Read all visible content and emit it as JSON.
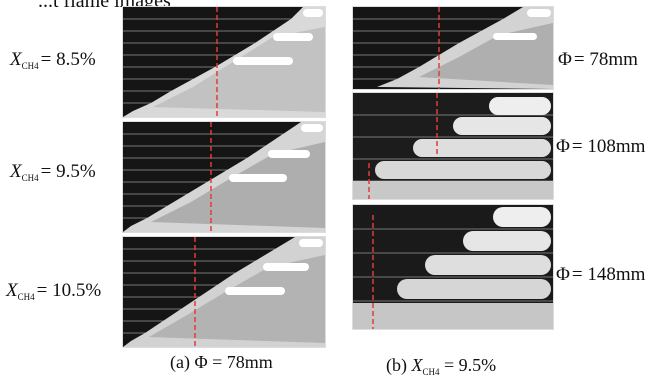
{
  "top_caption": "...t flame images",
  "left_column": {
    "rows": [
      {
        "sym": "X",
        "sub": "CH",
        "sub2": "4",
        "value": "= 8.5%"
      },
      {
        "sym": "X",
        "sub": "CH",
        "sub2": "4",
        "value": "= 9.5%"
      },
      {
        "sym": "X",
        "sub": "CH",
        "sub2": "4",
        "value": "= 10.5%"
      }
    ],
    "caption_prefix": "(a)",
    "caption_sym": "Φ",
    "caption_value": "= 78mm"
  },
  "right_column": {
    "rows": [
      {
        "sym": "Φ",
        "value": "= 78mm"
      },
      {
        "sym": "Φ",
        "value": "= 108mm"
      },
      {
        "sym": "Φ",
        "value": "= 148mm"
      }
    ],
    "caption_prefix": "(b)",
    "caption_sym": "X",
    "caption_sub": "CH",
    "caption_sub2": "4",
    "caption_value": "= 9.5%"
  },
  "colors": {
    "dash_line": "#e23b3b",
    "background": "#1a1a1a",
    "flame": "#e9e9e9"
  }
}
